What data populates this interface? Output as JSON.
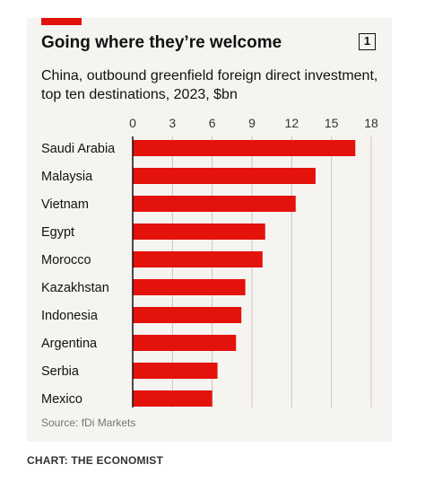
{
  "chart_number": "1",
  "source": "Source: fDi Markets",
  "credit": "CHART: THE ECONOMIST",
  "colors": {
    "bar": "#e3120b",
    "accent": "#e3120b",
    "background": "#f6f4f1",
    "gridline": "#c9c6c1"
  },
  "chart_data": {
    "type": "bar",
    "orientation": "horizontal",
    "title": "Going where they’re welcome",
    "subtitle": "China, outbound greenfield foreign direct investment, top ten destinations, 2023, $bn",
    "categories": [
      "Saudi Arabia",
      "Malaysia",
      "Vietnam",
      "Egypt",
      "Morocco",
      "Kazakhstan",
      "Indonesia",
      "Argentina",
      "Serbia",
      "Mexico"
    ],
    "values": [
      16.8,
      13.8,
      12.3,
      10.0,
      9.8,
      8.5,
      8.2,
      7.8,
      6.4,
      6.0
    ],
    "xticks": [
      0,
      3,
      6,
      9,
      12,
      15,
      18
    ],
    "xlim": [
      0,
      18
    ],
    "grid": true,
    "axis_position": "top"
  }
}
